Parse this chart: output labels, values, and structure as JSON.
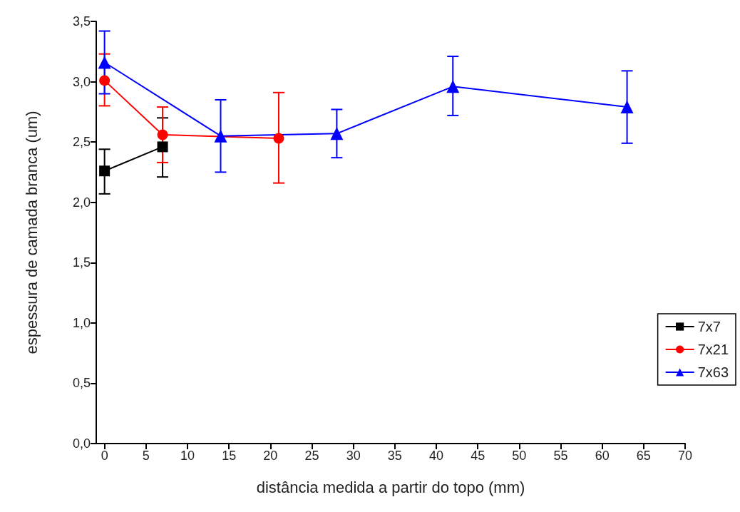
{
  "chart_data": {
    "type": "line",
    "xlabel": "distância medida a partir do topo (mm)",
    "ylabel": "espessura de camada branca (um)",
    "xlim": [
      -1,
      70
    ],
    "xticks": [
      0,
      5,
      10,
      15,
      20,
      25,
      30,
      35,
      40,
      45,
      50,
      55,
      60,
      65,
      70
    ],
    "ylim": [
      0,
      3.5
    ],
    "yticks": [
      {
        "value": 0,
        "label": "0,0"
      },
      {
        "value": 0.5,
        "label": "0,5"
      },
      {
        "value": 1,
        "label": "1,0"
      },
      {
        "value": 1.5,
        "label": "1,5"
      },
      {
        "value": 2,
        "label": "2,0"
      },
      {
        "value": 2.5,
        "label": "2,5"
      },
      {
        "value": 3,
        "label": "3,0"
      },
      {
        "value": 3.5,
        "label": "3,5"
      }
    ],
    "grid": false,
    "legend": "right",
    "line_style": "solid",
    "series": [
      {
        "name": "7x7",
        "color": "#000000",
        "marker": "square",
        "x": [
          0,
          7
        ],
        "values": [
          2.26,
          2.46
        ],
        "errors": [
          [
            2.07,
            2.44
          ],
          [
            2.21,
            2.7
          ]
        ]
      },
      {
        "name": "7x21",
        "color": "#ff0000",
        "marker": "circle",
        "x": [
          0,
          7,
          14,
          21
        ],
        "values": [
          3.01,
          2.56,
          null,
          2.53
        ],
        "errors": [
          [
            2.8,
            3.23
          ],
          [
            2.33,
            2.79
          ],
          null,
          [
            2.16,
            2.91
          ]
        ]
      },
      {
        "name": "7x63",
        "color": "#0000ff",
        "marker": "triangle",
        "x": [
          0,
          14,
          28,
          42,
          63
        ],
        "values": [
          3.16,
          2.55,
          2.57,
          2.96,
          2.79
        ],
        "errors": [
          [
            2.9,
            3.42
          ],
          [
            2.25,
            2.85
          ],
          [
            2.37,
            2.77
          ],
          [
            2.72,
            3.21
          ],
          [
            2.49,
            3.09
          ]
        ]
      }
    ]
  }
}
